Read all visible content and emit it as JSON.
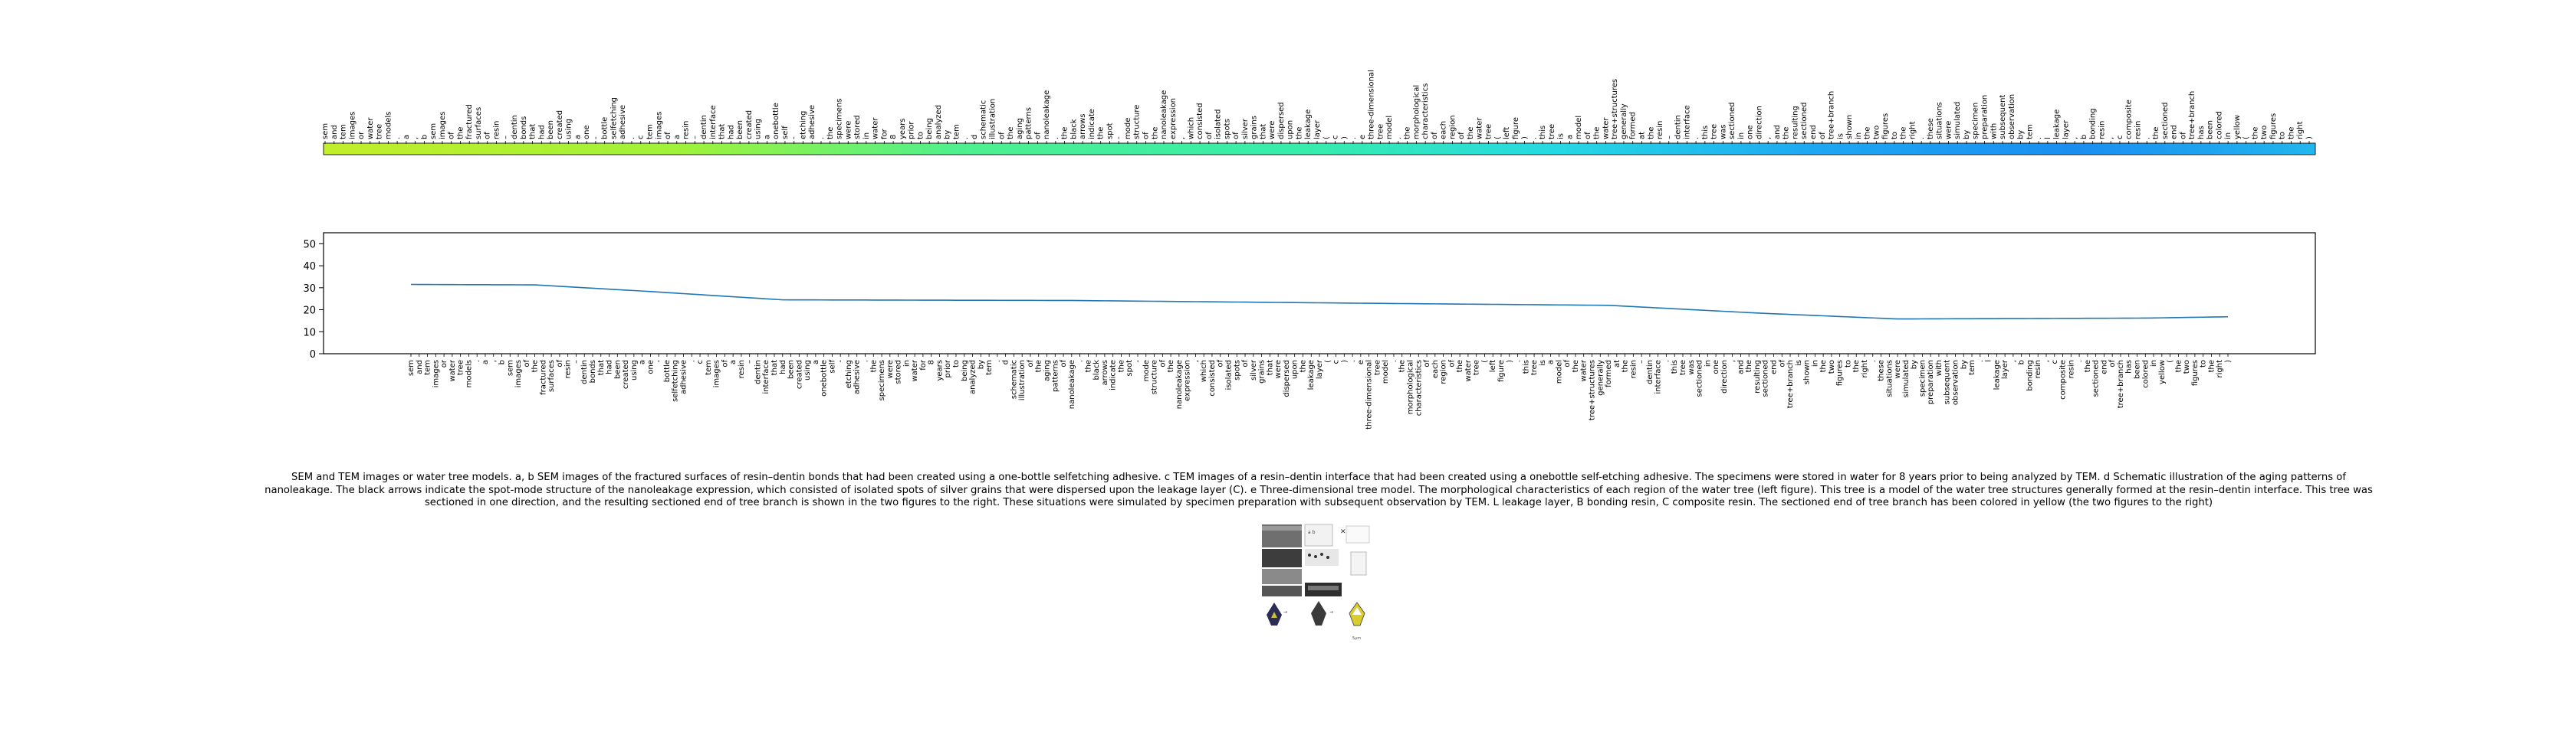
{
  "tokens": [
    "sem",
    "and",
    "tem",
    "images",
    "or",
    "water",
    "tree",
    "models",
    ".",
    "a",
    ",",
    "b",
    "sem",
    "images",
    "of",
    "the",
    "fractured",
    "surfaces",
    "of",
    "resin",
    "–",
    "dentin",
    "bonds",
    "that",
    "had",
    "been",
    "created",
    "using",
    "a",
    "one",
    "-",
    "bottle",
    "selfetching",
    "adhesive",
    ".",
    "c",
    "tem",
    "images",
    "of",
    "a",
    "resin",
    "–",
    "dentin",
    "interface",
    "that",
    "had",
    "been",
    "created",
    "using",
    "a",
    "onebottle",
    "self",
    "-",
    "etching",
    "adhesive",
    ".",
    "the",
    "specimens",
    "were",
    "stored",
    "in",
    "water",
    "for",
    "8",
    "years",
    "prior",
    "to",
    "being",
    "analyzed",
    "by",
    "tem",
    ".",
    "d",
    "schematic",
    "illustration",
    "of",
    "the",
    "aging",
    "patterns",
    "of",
    "nanoleakage",
    ".",
    "the",
    "black",
    "arrows",
    "indicate",
    "the",
    "spot",
    "-",
    "mode",
    "structure",
    "of",
    "the",
    "nanoleakage",
    "expression",
    ",",
    "which",
    "consisted",
    "of",
    "isolated",
    "spots",
    "of",
    "silver",
    "grains",
    "that",
    "were",
    "dispersed",
    "upon",
    "the",
    "leakage",
    "layer",
    "(",
    "c",
    ")",
    ".",
    "e",
    "three-dimensional",
    "tree",
    "model",
    ".",
    "the",
    "morphological",
    "characteristics",
    "of",
    "each",
    "region",
    "of",
    "the",
    "water",
    "tree",
    "(",
    "left",
    "figure",
    ")",
    ".",
    "this",
    "tree",
    "is",
    "a",
    "model",
    "of",
    "the",
    "water",
    "tree+structures",
    "generally",
    "formed",
    "at",
    "the",
    "resin",
    "–",
    "dentin",
    "interface",
    ".",
    "this",
    "tree",
    "was",
    "sectioned",
    "in",
    "one",
    "direction",
    ",",
    "and",
    "the",
    "resulting",
    "sectioned",
    "end",
    "of",
    "tree+branch",
    "is",
    "shown",
    "in",
    "the",
    "two",
    "figures",
    "to",
    "the",
    "right",
    ".",
    "these",
    "situations",
    "were",
    "simulated",
    "by",
    "specimen",
    "preparation",
    "with",
    "subsequent",
    "observation",
    "by",
    "tem",
    ".",
    "l",
    "leakage",
    "layer",
    ",",
    "b",
    "bonding",
    "resin",
    ",",
    "c",
    "composite",
    "resin",
    ".",
    "the",
    "sectioned",
    "end",
    "of",
    "tree+branch",
    "has",
    "been",
    "colored",
    "in",
    "yellow",
    "(",
    "the",
    "two",
    "figures",
    "to",
    "the",
    "right",
    ")"
  ],
  "chart_data": {
    "type": "line",
    "title": "",
    "xlabel": "",
    "ylabel": "",
    "ylim": [
      0,
      55
    ],
    "yticks": [
      0,
      10,
      20,
      30,
      40,
      50
    ],
    "grid": false,
    "x": [
      "sem",
      "and",
      "tem",
      "images",
      "or",
      "water",
      "tree",
      "models",
      ".",
      "a",
      ",",
      "b",
      "sem",
      "images",
      "of",
      "the",
      "fractured",
      "surfaces",
      "of",
      "resin",
      "–",
      "dentin",
      "bonds",
      "that",
      "had",
      "been",
      "created",
      "using",
      "a",
      "one",
      "-",
      "bottle",
      "selfetching",
      "adhesive",
      ".",
      "c",
      "tem",
      "images",
      "of",
      "a",
      "resin",
      "–",
      "dentin",
      "interface",
      "that",
      "had",
      "been",
      "created",
      "using",
      "a",
      "onebottle",
      "self",
      "-",
      "etching",
      "adhesive",
      ".",
      "the",
      "specimens",
      "were",
      "stored",
      "in",
      "water",
      "for",
      "8",
      "years",
      "prior",
      "to",
      "being",
      "analyzed",
      "by",
      "tem",
      ".",
      "d",
      "schematic",
      "illustration",
      "of",
      "the",
      "aging",
      "patterns",
      "of",
      "nanoleakage",
      ".",
      "the",
      "black",
      "arrows",
      "indicate",
      "the",
      "spot",
      "-",
      "mode",
      "structure",
      "of",
      "the",
      "nanoleakage",
      "expression",
      ",",
      "which",
      "consisted",
      "of",
      "isolated",
      "spots",
      "of",
      "silver",
      "grains",
      "that",
      "were",
      "dispersed",
      "upon",
      "the",
      "leakage",
      "layer",
      "(",
      "c",
      ")",
      ".",
      "e",
      "three-dimensional",
      "tree",
      "model",
      ".",
      "the",
      "morphological",
      "characteristics",
      "of",
      "each",
      "region",
      "of",
      "the",
      "water",
      "tree",
      "(",
      "left",
      "figure",
      ")",
      ".",
      "this",
      "tree",
      "is",
      "a",
      "model",
      "of",
      "the",
      "water",
      "tree+structures",
      "generally",
      "formed",
      "at",
      "the",
      "resin",
      "–",
      "dentin",
      "interface",
      ".",
      "this",
      "tree",
      "was",
      "sectioned",
      "in",
      "one",
      "direction",
      ",",
      "and",
      "the",
      "resulting",
      "sectioned",
      "end",
      "of",
      "tree+branch",
      "is",
      "shown",
      "in",
      "the",
      "two",
      "figures",
      "to",
      "the",
      "right",
      ".",
      "these",
      "situations",
      "were",
      "simulated",
      "by",
      "specimen",
      "preparation",
      "with",
      "subsequent",
      "observation",
      "by",
      "tem",
      ".",
      "l",
      "leakage",
      "layer",
      ",",
      "b",
      "bonding",
      "resin",
      ",",
      "c",
      "composite",
      "resin",
      ".",
      "the",
      "sectioned",
      "end",
      "of",
      "tree+branch",
      "has",
      "been",
      "colored",
      "in",
      "yellow",
      "(",
      "the",
      "two",
      "figures",
      "to",
      "the",
      "right",
      ")"
    ],
    "curve_knots": [
      {
        "token_index": 0,
        "value": 31.5
      },
      {
        "token_index": 15,
        "value": 31.3
      },
      {
        "token_index": 28,
        "value": 28.5
      },
      {
        "token_index": 45,
        "value": 24.5
      },
      {
        "token_index": 80,
        "value": 24.2
      },
      {
        "token_index": 120,
        "value": 22.8
      },
      {
        "token_index": 145,
        "value": 22.0
      },
      {
        "token_index": 163,
        "value": 18.5
      },
      {
        "token_index": 180,
        "value": 15.8
      },
      {
        "token_index": 210,
        "value": 16.2
      },
      {
        "token_index": 240,
        "value": 18.0
      },
      {
        "token_index": 244,
        "value": 17.2
      }
    ],
    "line_color": "#1f77b4"
  },
  "caption": "SEM and TEM images or water tree models. a, b SEM images of the fractured surfaces of resin–dentin bonds that had been created using a one-bottle selfetching adhesive. c TEM images of a resin–dentin interface that had been created using a onebottle self-etching adhesive. The specimens were stored in water for 8 years prior to being analyzed by TEM. d Schematic illustration of the aging patterns of nanoleakage. The black arrows indicate the spot-mode structure of the nanoleakage expression, which consisted of isolated spots of silver grains that were dispersed upon the leakage layer (C). e Three-dimensional tree model. The morphological characteristics of each region of the water tree (left figure). This tree is a model of the water tree structures generally formed at the resin–dentin interface. This tree was sectioned in one direction, and the resulting sectioned end of tree branch is shown in the two figures to the right. These situations were simulated by specimen preparation with subsequent observation by TEM. L leakage layer, B bonding resin, C composite resin. The sectioned end of tree branch has been colored in yellow (the two figures to the right)",
  "colors": {
    "strip_start": "#c2ee2a",
    "strip_mid": "#3ef0a2",
    "strip_end": "#1e90f5"
  }
}
